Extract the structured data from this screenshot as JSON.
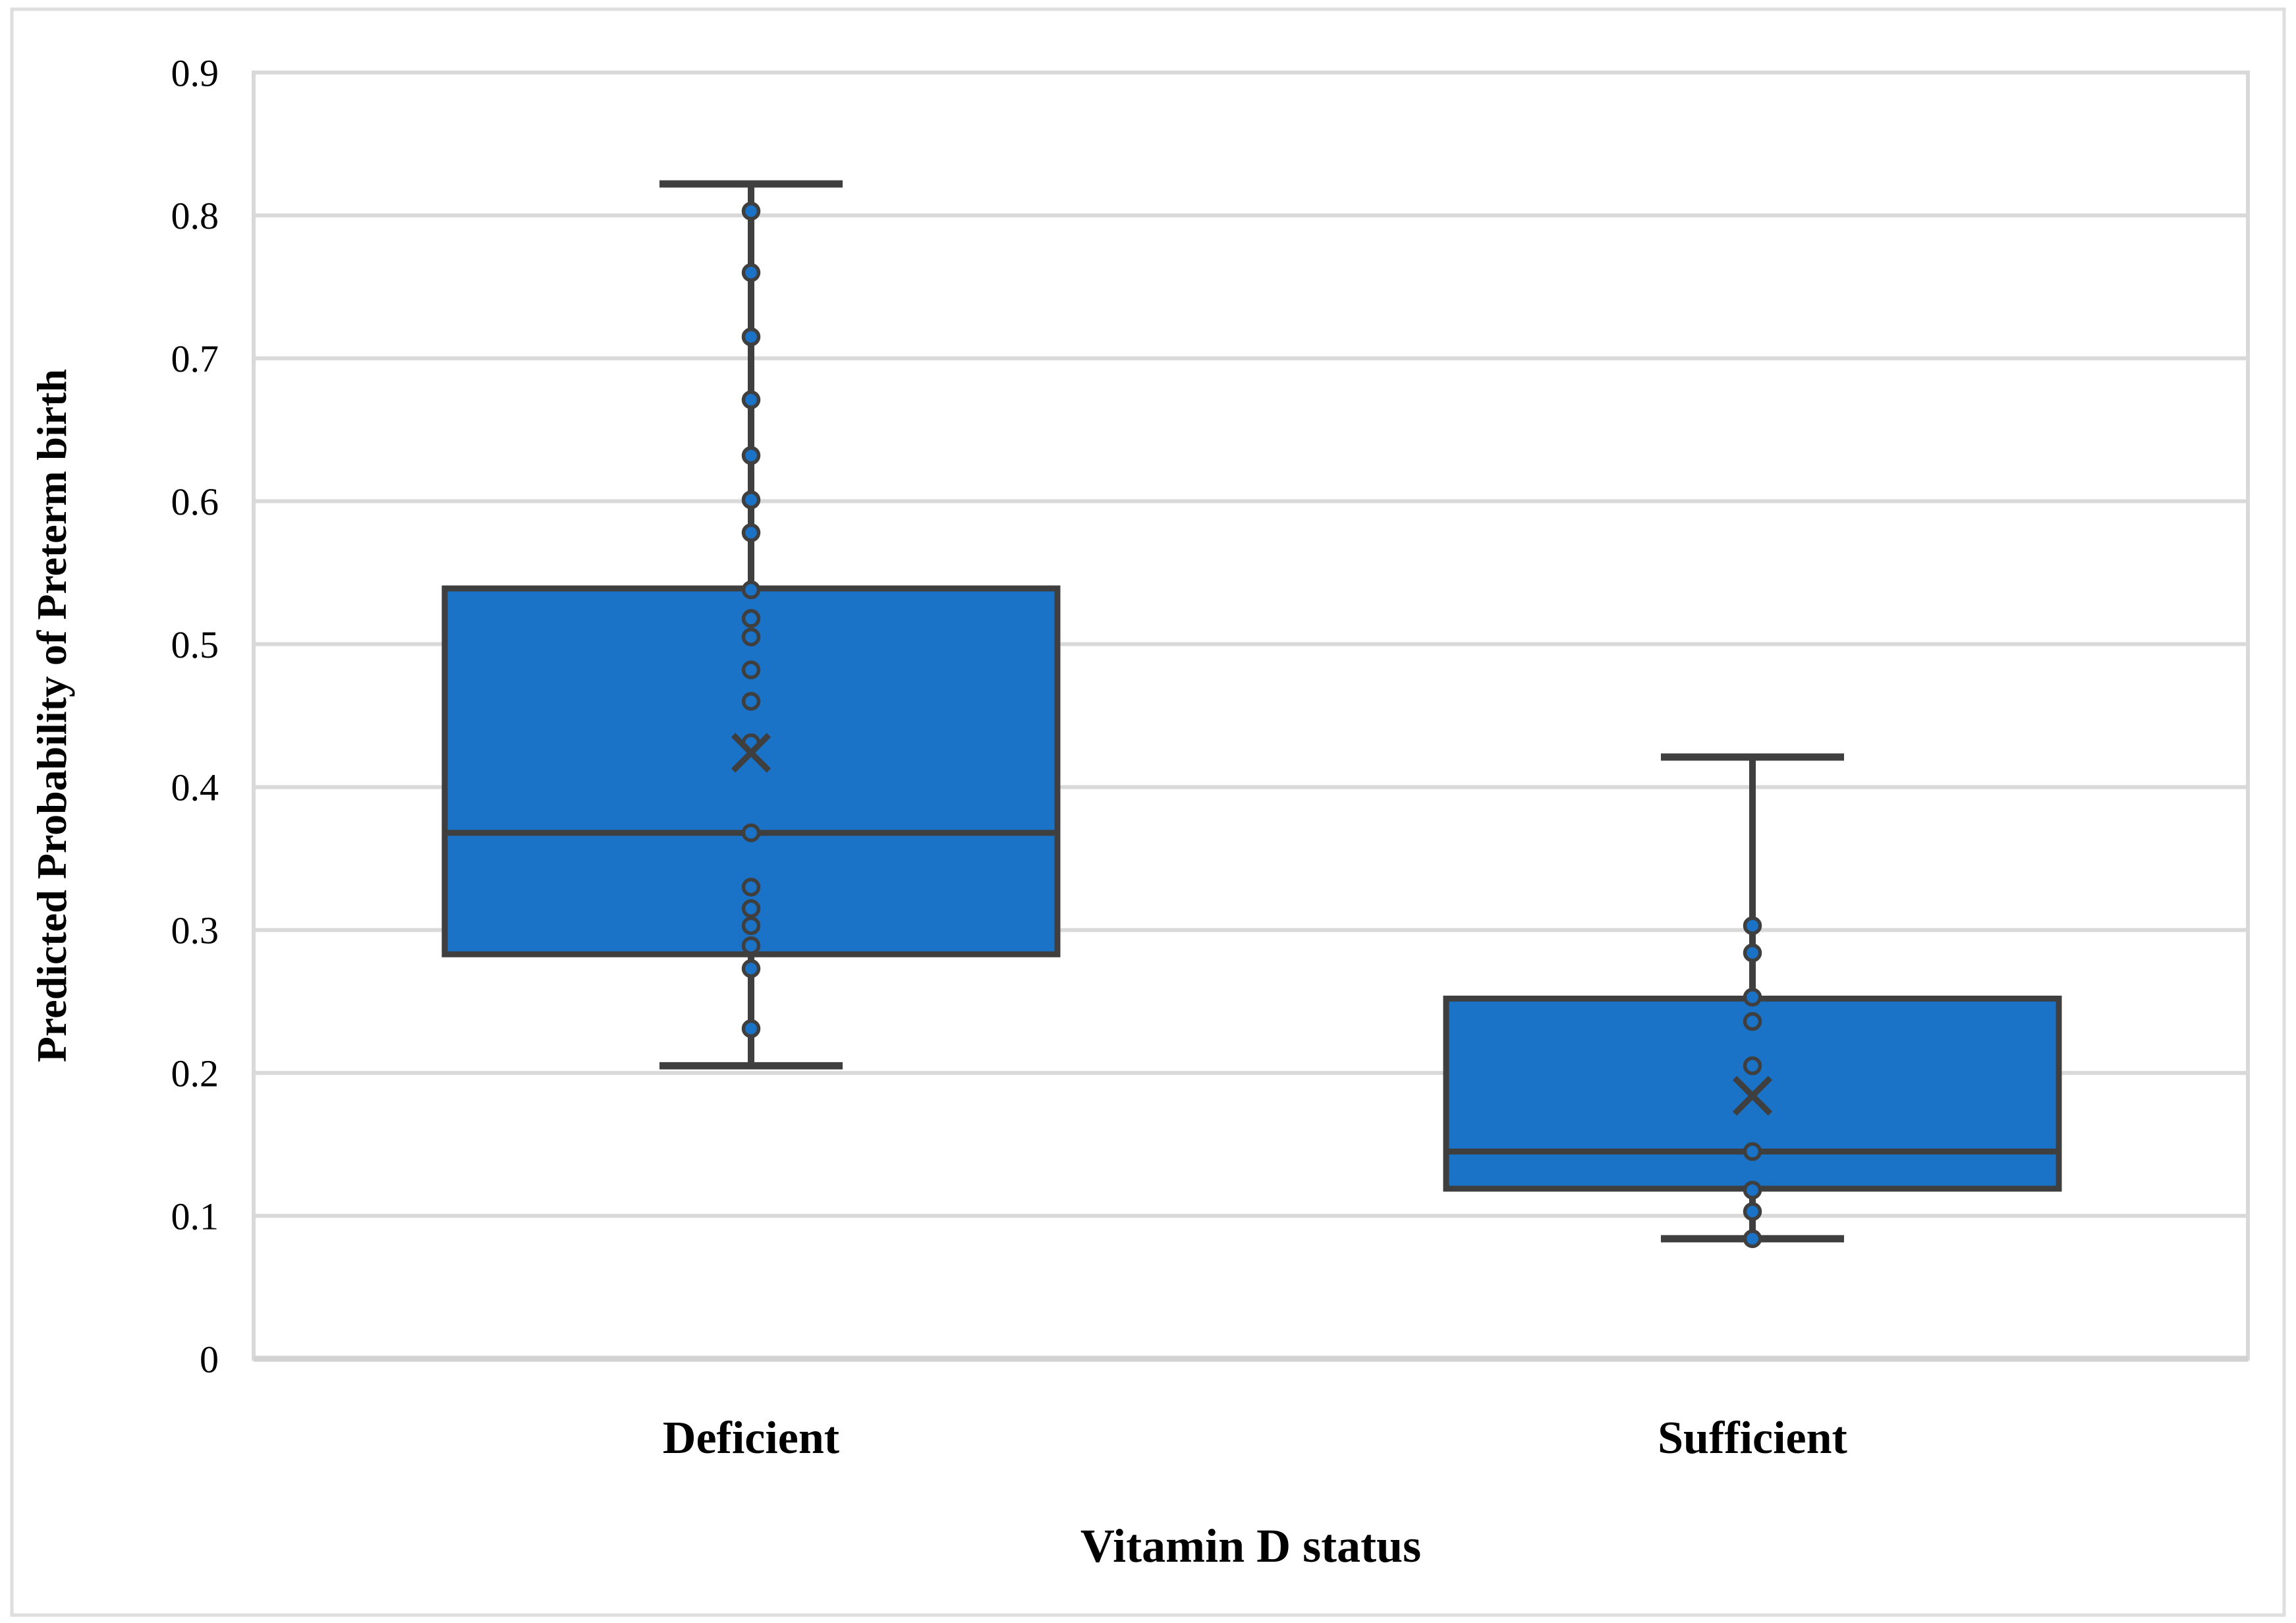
{
  "chart_data": {
    "type": "box",
    "title": "",
    "xlabel": "Vitamin D status",
    "ylabel": "Predicted Probability of Preterm birth",
    "ylim": [
      0,
      0.9
    ],
    "ytick_step": 0.1,
    "ytick_labels": [
      "0",
      "0.1",
      "0.2",
      "0.3",
      "0.4",
      "0.5",
      "0.6",
      "0.7",
      "0.8",
      "0.9"
    ],
    "grid": true,
    "legend": "none",
    "categories": [
      "Deficient",
      "Sufficient"
    ],
    "series": [
      {
        "name": "Deficient",
        "whisker_low": 0.205,
        "q1": 0.283,
        "median": 0.368,
        "q3": 0.539,
        "whisker_high": 0.822,
        "mean": 0.424,
        "points": [
          0.803,
          0.76,
          0.715,
          0.671,
          0.632,
          0.601,
          0.578,
          0.538,
          0.518,
          0.505,
          0.482,
          0.46,
          0.431,
          0.368,
          0.33,
          0.315,
          0.303,
          0.289,
          0.273,
          0.231
        ]
      },
      {
        "name": "Sufficient",
        "whisker_low": 0.084,
        "q1": 0.119,
        "median": 0.145,
        "q3": 0.252,
        "whisker_high": 0.421,
        "mean": 0.184,
        "points": [
          0.303,
          0.284,
          0.253,
          0.236,
          0.205,
          0.145,
          0.118,
          0.103,
          0.084
        ]
      }
    ],
    "marker_shape": "circle-with-outline",
    "mean_marker_shape": "x-cross",
    "colors": {
      "box_fill": "#1B73C8",
      "marker_fill": "#1B73C8",
      "line": "#3F3F3F",
      "grid": "#D9D9D9",
      "axis_line": "#D2D2D2",
      "figure_border": "#DEDEDE",
      "text": "#000000"
    }
  }
}
